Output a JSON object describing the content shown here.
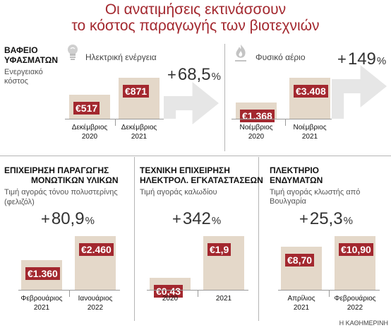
{
  "header": {
    "title_line1": "Οι ανατιμήσεις εκτινάσσουν",
    "title_line2": "το κόστος παραγωγής των βιοτεχνιών"
  },
  "top": {
    "title_line1": "ΒΑΦΕΙΟ",
    "title_line2": "ΥΦΑΣΜΑΤΩΝ",
    "sub_line1": "Ενεργειακό",
    "sub_line2": "κόστος",
    "left_icon": "lightbulb-icon",
    "right_icon": "flame-icon"
  },
  "colors": {
    "accent": "#a3282f",
    "bar": "#e4d8c9",
    "arrow": "#e6e6e6"
  },
  "footer": {
    "credit": "Η ΚΑΘΗΜΕΡΙΝΗ"
  },
  "chart_data": [
    {
      "type": "bar",
      "label": "Ηλεκτρική ενέργεια",
      "change": {
        "sign": "+",
        "number": "68,5",
        "unit": "%"
      },
      "categories": [
        {
          "line1": "Δεκέμβριος",
          "line2": "2020"
        },
        {
          "line1": "Δεκέμβριος",
          "line2": "2021"
        }
      ],
      "values": [
        517,
        871
      ],
      "value_labels": [
        "€517",
        "€871"
      ]
    },
    {
      "type": "bar",
      "label": "Φυσικό αέριο",
      "change": {
        "sign": "+",
        "number": "149",
        "unit": "%"
      },
      "categories": [
        {
          "line1": "Νοέμβριος",
          "line2": "2020"
        },
        {
          "line1": "Νοέμβριος",
          "line2": "2021"
        }
      ],
      "values": [
        1368,
        3408
      ],
      "value_labels": [
        "€1.368",
        "€3.408"
      ]
    },
    {
      "type": "bar",
      "title_line1": "ΕΠΙΧΕΙΡΗΣΗ ΠΑΡΑΓΩΓΗΣ",
      "title_line2": "ΜΟΝΩΤΙΚΩΝ ΥΛΙΚΩΝ",
      "sub_line1": "Τιμή αγοράς τόνου πολυστερίνης",
      "sub_line2": "(φελιζόλ)",
      "change": {
        "sign": "+",
        "number": "80,9",
        "unit": "%"
      },
      "categories": [
        {
          "line1": "Φεβρουάριος",
          "line2": "2021"
        },
        {
          "line1": "Ιανουάριος",
          "line2": "2022"
        }
      ],
      "values": [
        1360,
        2460
      ],
      "value_labels": [
        "€1.360",
        "€2.460"
      ]
    },
    {
      "type": "bar",
      "title_line1": "ΤΕΧΝΙΚΗ ΕΠΙΧΕΙΡΗΣΗ",
      "title_line2": "ΗΛΕΚΤΡΟΛ. ΕΓΚΑΤΑΣΤΑΣΕΩΝ",
      "sub_line1": "Τιμή αγοράς καλωδίου",
      "sub_line2": "",
      "change": {
        "sign": "+",
        "number": "342",
        "unit": "%"
      },
      "categories": [
        {
          "line1": "2020",
          "line2": ""
        },
        {
          "line1": "2021",
          "line2": ""
        }
      ],
      "values": [
        0.43,
        1.9
      ],
      "value_labels": [
        "€0,43",
        "€1,9"
      ]
    },
    {
      "type": "bar",
      "title_line1": "ΠΛΕΚΤΗΡΙΟ",
      "title_line2": "ΕΝΔΥΜΑΤΩΝ",
      "sub_line1": "Τιμή αγοράς κλωστής από Βουλγαρία",
      "sub_line2": "",
      "change": {
        "sign": "+",
        "number": "25,3",
        "unit": "%"
      },
      "categories": [
        {
          "line1": "Απρίλιος",
          "line2": "2021"
        },
        {
          "line1": "Φεβρουάριος",
          "line2": "2022"
        }
      ],
      "values": [
        8.7,
        10.9
      ],
      "value_labels": [
        "€8,70",
        "€10,90"
      ]
    }
  ]
}
